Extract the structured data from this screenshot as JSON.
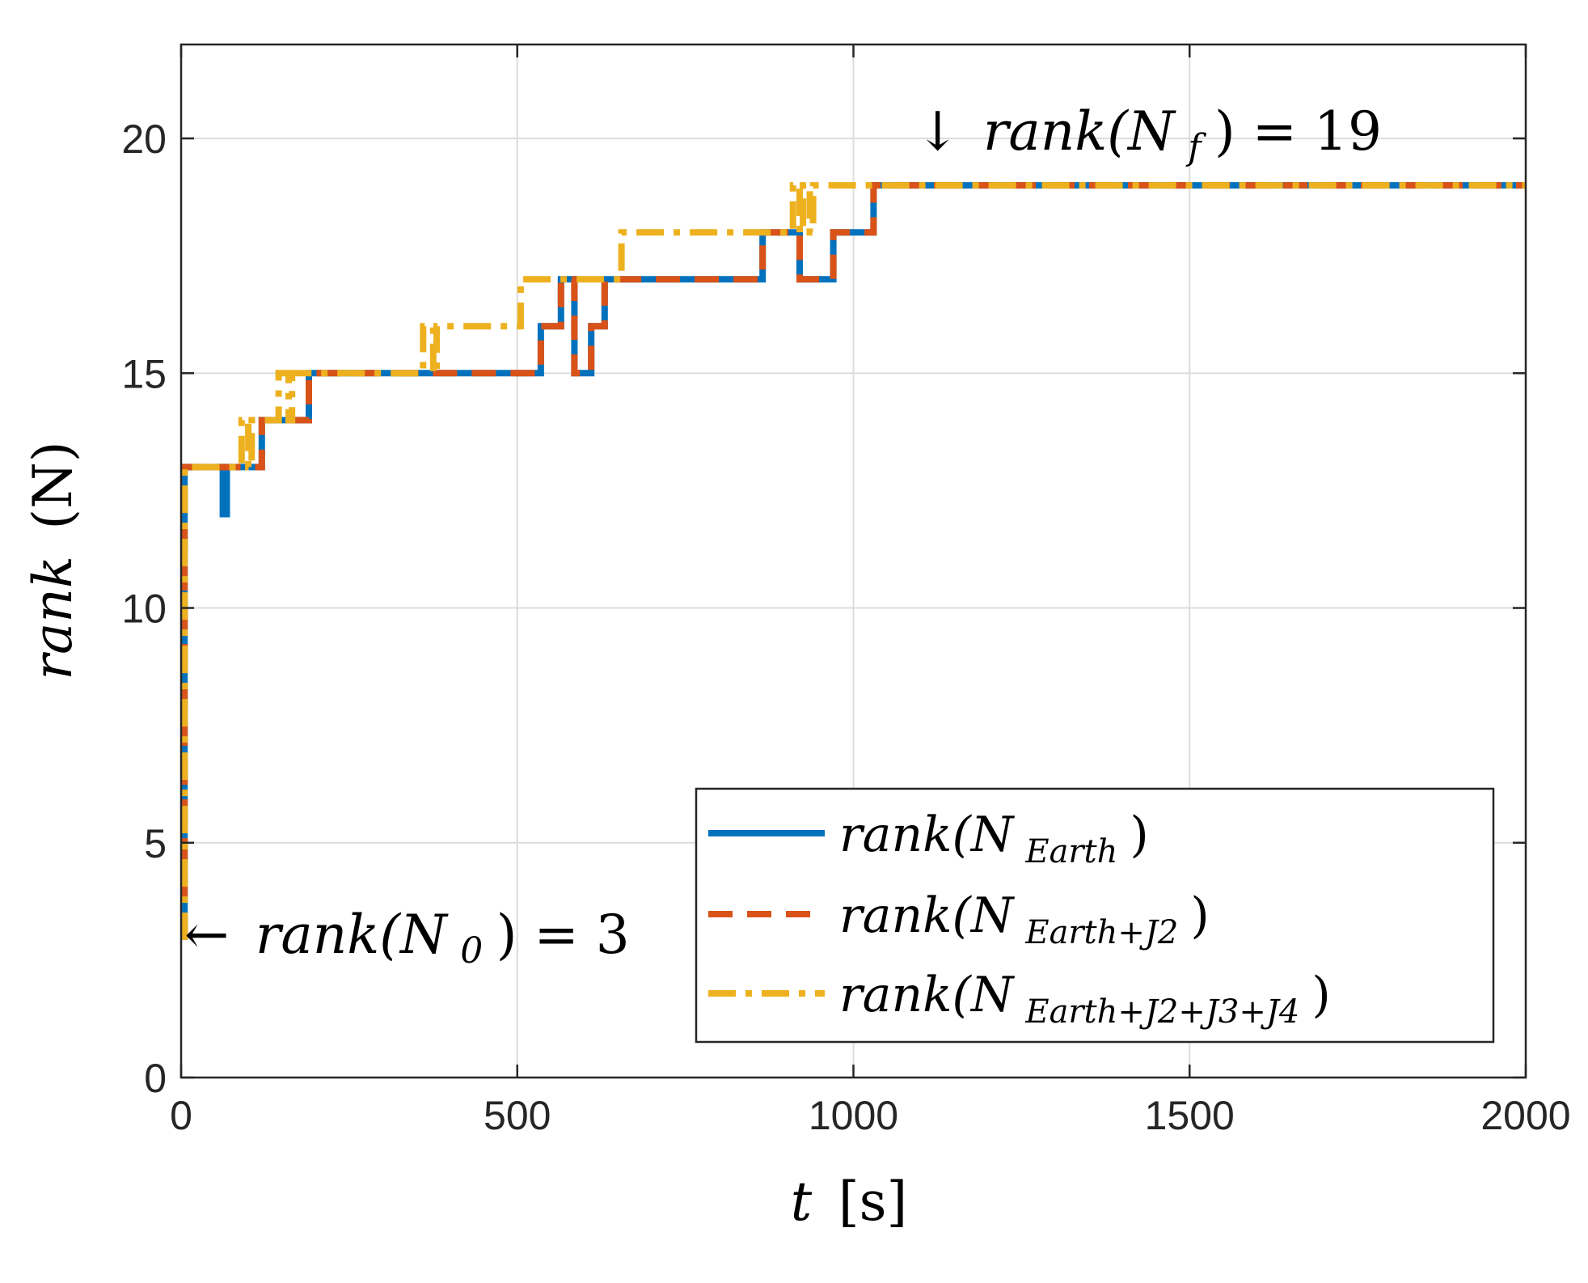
{
  "chart_data": {
    "type": "line",
    "step": true,
    "xlabel": {
      "var": "t",
      "unit": "[s]"
    },
    "ylabel": {
      "var": "rank",
      "arg": "(N)"
    },
    "xlim": [
      0,
      2000
    ],
    "ylim": [
      0,
      22
    ],
    "xticks": [
      0,
      500,
      1000,
      1500,
      2000
    ],
    "yticks": [
      0,
      5,
      10,
      15,
      20
    ],
    "grid": true,
    "legend_position": "bottom-right",
    "series": [
      {
        "name": "rank(N_Earth)",
        "label_main": "rank(N",
        "label_sub": "Earth",
        "label_close": ")",
        "color": "#0072BD",
        "style": "solid",
        "x": [
          0,
          5,
          60,
          62,
          68,
          115,
          120,
          185,
          190,
          530,
          535,
          560,
          565,
          580,
          585,
          605,
          610,
          625,
          630,
          860,
          865,
          915,
          920,
          965,
          970,
          1025,
          1030,
          2000
        ],
        "y": [
          3,
          13,
          13,
          12,
          13,
          13,
          14,
          14,
          15,
          15,
          16,
          16,
          17,
          17,
          15,
          15,
          16,
          16,
          17,
          17,
          18,
          18,
          17,
          17,
          18,
          18,
          19,
          19
        ]
      },
      {
        "name": "rank(N_Earth+J2)",
        "label_main": "rank(N",
        "label_sub": "Earth+J2",
        "label_close": ")",
        "color": "#D95319",
        "style": "dashed",
        "x": [
          0,
          5,
          115,
          120,
          185,
          190,
          530,
          535,
          560,
          565,
          580,
          585,
          605,
          610,
          625,
          630,
          860,
          865,
          915,
          920,
          965,
          970,
          1025,
          1030,
          2000
        ],
        "y": [
          3,
          13,
          13,
          14,
          14,
          15,
          15,
          16,
          16,
          17,
          17,
          15,
          15,
          16,
          16,
          17,
          17,
          18,
          18,
          17,
          17,
          18,
          18,
          19,
          19
        ]
      },
      {
        "name": "rank(N_Earth+J2+J3+J4)",
        "label_main": "rank(N",
        "label_sub": "Earth+J2+J3+J4",
        "label_close": ")",
        "color": "#EDB120",
        "style": "dashdot",
        "x": [
          0,
          5,
          85,
          90,
          100,
          105,
          140,
          145,
          160,
          165,
          355,
          360,
          375,
          380,
          500,
          505,
          650,
          655,
          905,
          910,
          920,
          925,
          935,
          940,
          2000
        ],
        "y": [
          3,
          13,
          13,
          14,
          13,
          14,
          14,
          15,
          14,
          15,
          15,
          16,
          15,
          16,
          16,
          17,
          17,
          18,
          18,
          19,
          18,
          19,
          18,
          19,
          19
        ]
      }
    ],
    "annotations": [
      {
        "arrow": "←",
        "main": "rank(N",
        "sub": "0",
        "tail": ") = 3",
        "at": [
          0,
          3
        ]
      },
      {
        "arrow": "↓",
        "main": "rank(N",
        "sub": "f",
        "tail": ") = 19",
        "at": [
          1110,
          20
        ]
      }
    ]
  }
}
